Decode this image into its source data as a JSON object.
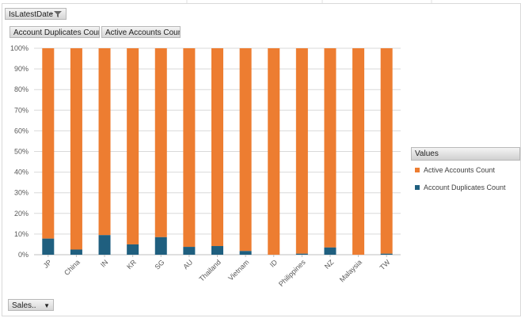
{
  "filter": {
    "label": "IsLatestDate"
  },
  "value_buttons": [
    "Account Duplicates Count",
    "Active Accounts Count"
  ],
  "axis_field": {
    "label": "Sales.."
  },
  "legend": {
    "title": "Values",
    "items": [
      {
        "label": "Active Accounts Count",
        "color": "#ED7D31"
      },
      {
        "label": "Account Duplicates Count",
        "color": "#1F5F7F"
      }
    ]
  },
  "colors": {
    "active": "#ED7D31",
    "duplicates": "#1F5F7F"
  },
  "chart_data": {
    "type": "bar",
    "stacked": "percent",
    "categories": [
      "JP",
      "China",
      "IN",
      "KR",
      "SG",
      "AU",
      "Thailand",
      "Vietnam",
      "ID",
      "Philippines",
      "NZ",
      "Malaysia",
      "TW"
    ],
    "series": [
      {
        "name": "Account Duplicates Count",
        "values": [
          7.8,
          2.5,
          9.5,
          5,
          8.5,
          3.8,
          4.2,
          1.8,
          0,
          0.5,
          3.5,
          0,
          0.5
        ]
      },
      {
        "name": "Active Accounts Count",
        "values": [
          92.2,
          97.5,
          90.5,
          95,
          91.5,
          96.2,
          95.8,
          98.2,
          100,
          99.5,
          96.5,
          100,
          99.5
        ]
      }
    ],
    "yticks": [
      "0%",
      "10%",
      "20%",
      "30%",
      "40%",
      "50%",
      "60%",
      "70%",
      "80%",
      "90%",
      "100%"
    ],
    "ylim": [
      0,
      100
    ],
    "grid": true,
    "legend_position": "right"
  }
}
